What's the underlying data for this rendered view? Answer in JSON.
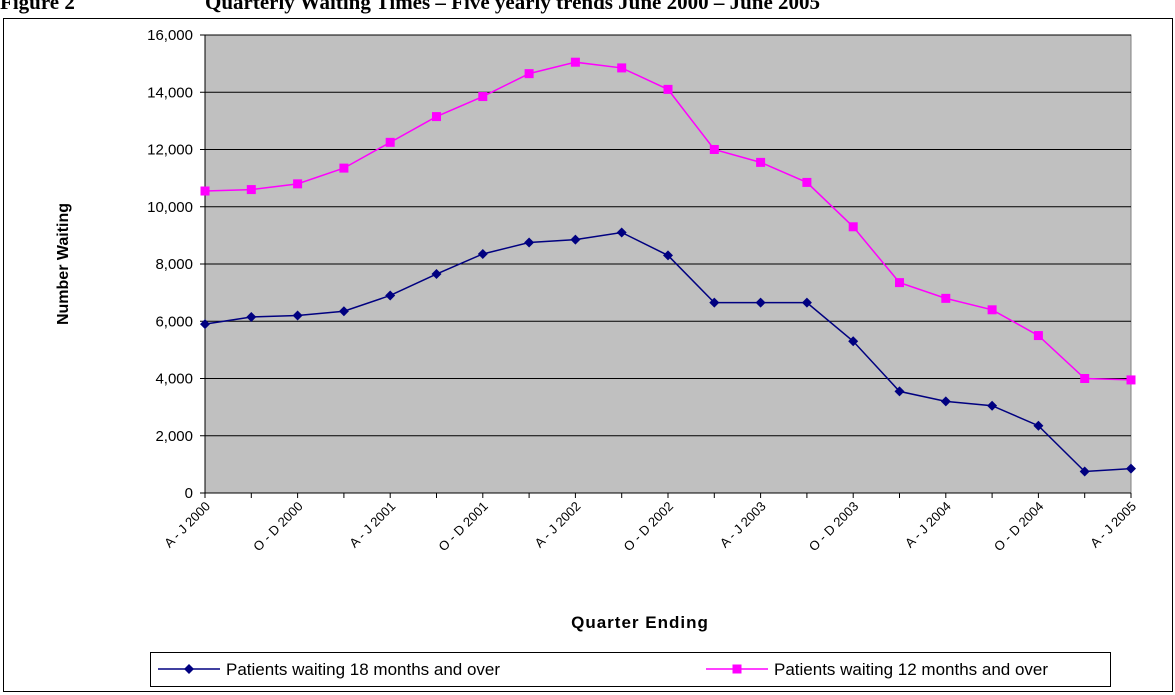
{
  "chart_data": {
    "type": "line",
    "figure_label": "Figure 2",
    "title": "Quarterly Waiting Times – Five yearly trends June 2000 – June 2005",
    "x_label": "Quarter Ending",
    "y_label": "Number Waiting",
    "categories": [
      "A - J 2000",
      null,
      "O - D 2000",
      null,
      "A - J 2001",
      null,
      "O - D 2001",
      null,
      "A - J 2002",
      null,
      "O - D 2002",
      null,
      "A - J 2003",
      null,
      "O - D 2003",
      null,
      "A - J 2004",
      null,
      "O - D 2004",
      null,
      "A - J 2005"
    ],
    "series": [
      {
        "name": "Patients waiting 18 months and over",
        "color": "#000080",
        "marker": "diamond",
        "values": [
          5900,
          6150,
          6200,
          6350,
          6900,
          7650,
          8350,
          8750,
          8850,
          9100,
          8300,
          6650,
          6650,
          6650,
          5300,
          3550,
          3200,
          3050,
          2350,
          750,
          850
        ]
      },
      {
        "name": "Patients waiting 12 months and over",
        "color": "#ff00ff",
        "marker": "square",
        "values": [
          10550,
          10600,
          10800,
          11350,
          12250,
          13150,
          13850,
          14650,
          15050,
          14850,
          14100,
          12000,
          11550,
          10850,
          9300,
          7350,
          6800,
          6400,
          5500,
          4000,
          3950
        ]
      }
    ],
    "ylim": [
      0,
      16000
    ],
    "yticks": [
      0,
      {
        "value": 2000,
        "label": "2,000"
      },
      {
        "value": 4000,
        "label": "4,000"
      },
      {
        "value": 6000,
        "label": "6,000"
      },
      {
        "value": 8000,
        "label": "8,000"
      },
      {
        "value": 10000,
        "label": "10,000"
      },
      {
        "value": 12000,
        "label": "12,000"
      },
      {
        "value": 14000,
        "label": "14,000"
      },
      {
        "value": 16000,
        "label": "16,000"
      }
    ],
    "grid": true,
    "legend": "bottom"
  }
}
